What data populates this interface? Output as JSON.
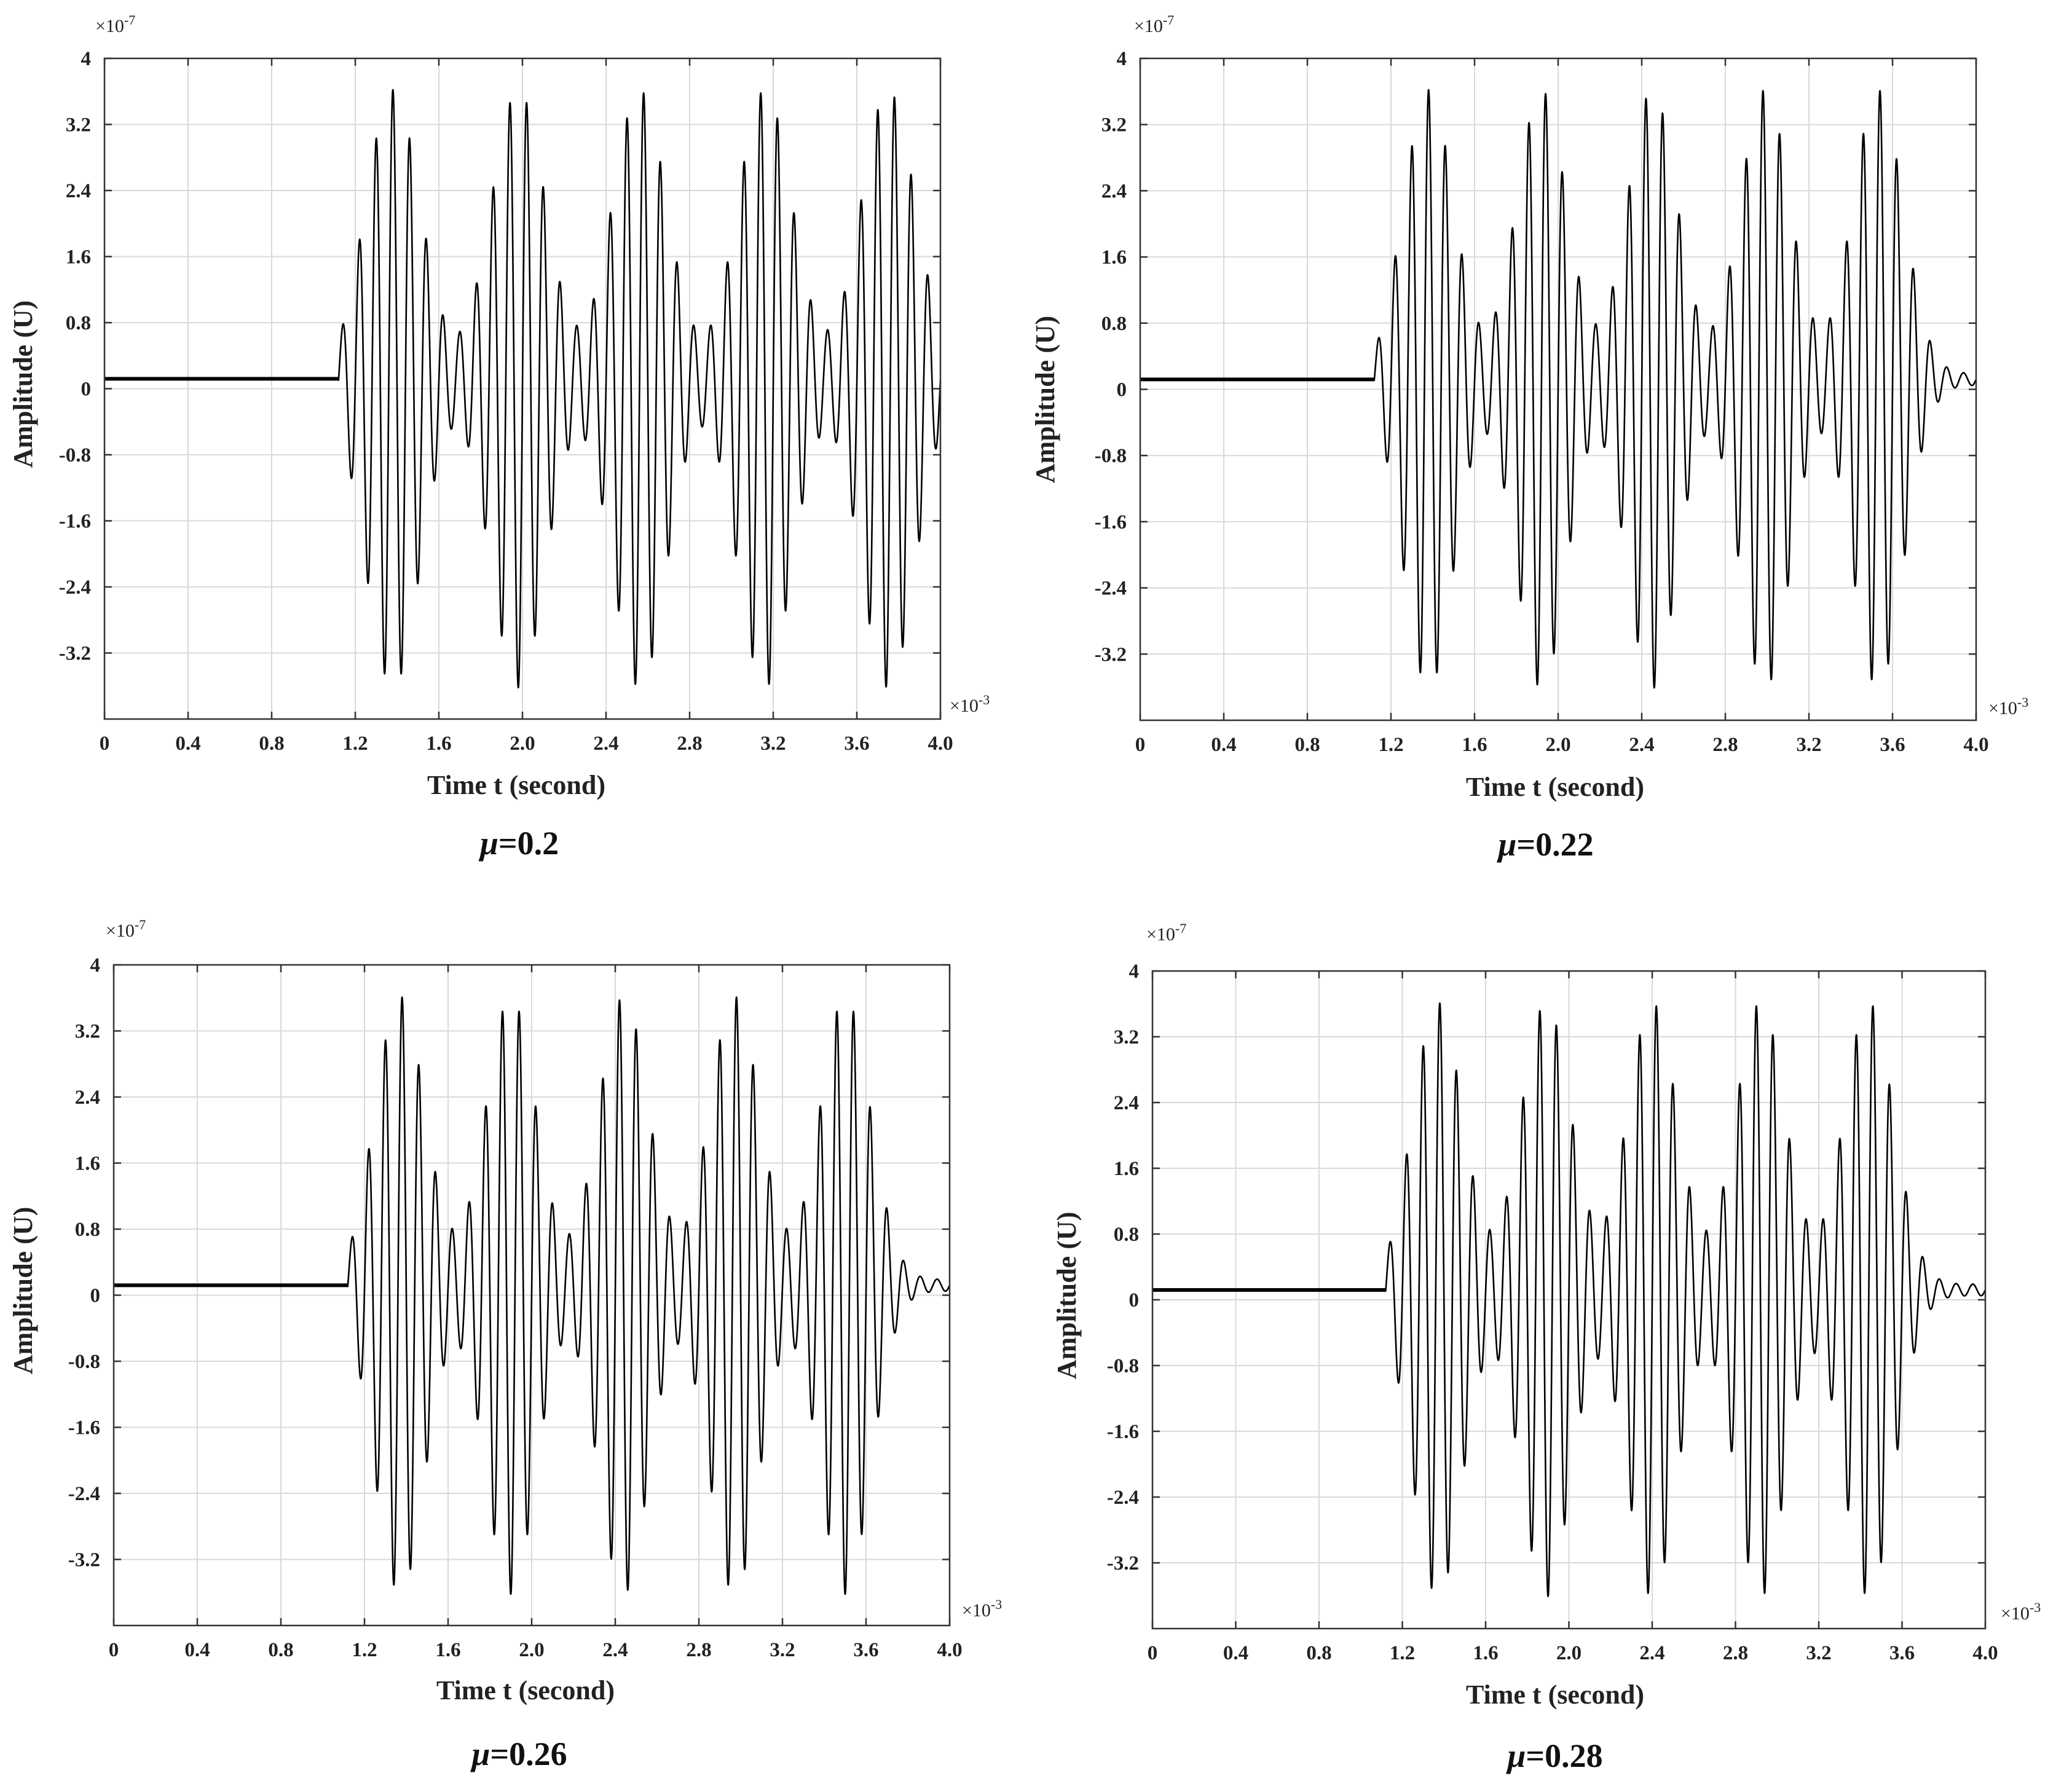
{
  "figure": {
    "xlabel": "Time t (second)",
    "ylabel": "Amplitude (U)",
    "x_exponent": {
      "base": "×10",
      "power": "-3"
    },
    "y_exponent": {
      "base": "×10",
      "power": "-7"
    },
    "x_ticks": [
      "0",
      "0.4",
      "0.8",
      "1.2",
      "1.6",
      "2.0",
      "2.4",
      "2.8",
      "3.2",
      "3.6",
      "4.0"
    ],
    "y_ticks": [
      "4",
      "3.2",
      "2.4",
      "1.6",
      "0.8",
      "0",
      "-0.8",
      "-1.6",
      "-2.4",
      "-3.2"
    ]
  },
  "chart_data": [
    {
      "type": "line",
      "title": "μ=0.2",
      "caption": {
        "symbol": "μ",
        "value": "=0.2"
      },
      "xlabel": "Time t (second)",
      "ylabel": "Amplitude (U)",
      "x_scale": "×10^-3",
      "y_scale": "×10^-7",
      "xlim": [
        0,
        4.0
      ],
      "ylim": [
        -4,
        4
      ],
      "grid": true,
      "series": [
        {
          "name": "Amplitude",
          "baseline": 0.12,
          "onset": 1.12,
          "carrier_frequency": 12.5,
          "peak_amplitude": 3.55,
          "packet_centers": [
            1.38,
            1.98,
            2.56,
            3.16,
            3.75
          ],
          "packet_width": 0.13
        }
      ]
    },
    {
      "type": "line",
      "title": "μ=0.22",
      "caption": {
        "symbol": "μ",
        "value": "=0.22"
      },
      "xlabel": "Time t (second)",
      "ylabel": "Amplitude (U)",
      "x_scale": "×10^-3",
      "y_scale": "×10^-7",
      "xlim": [
        0,
        4.0
      ],
      "ylim": [
        -4,
        4
      ],
      "grid": true,
      "series": [
        {
          "name": "Amplitude",
          "baseline": 0.12,
          "onset": 1.12,
          "carrier_frequency": 12.5,
          "peak_amplitude": 3.55,
          "packet_centers": [
            1.38,
            1.92,
            2.45,
            2.99,
            3.53
          ],
          "packet_width": 0.12
        }
      ]
    },
    {
      "type": "line",
      "title": "μ=0.26",
      "caption": {
        "symbol": "μ",
        "value": "=0.26"
      },
      "xlabel": "Time t (second)",
      "ylabel": "Amplitude (U)",
      "x_scale": "×10^-3",
      "y_scale": "×10^-7",
      "xlim": [
        0,
        4.0
      ],
      "ylim": [
        -4,
        4
      ],
      "grid": true,
      "series": [
        {
          "name": "Amplitude",
          "baseline": 0.12,
          "onset": 1.12,
          "carrier_frequency": 12.5,
          "peak_amplitude": 3.55,
          "packet_centers": [
            1.37,
            1.9,
            2.44,
            2.97,
            3.5
          ],
          "packet_width": 0.12
        }
      ]
    },
    {
      "type": "line",
      "title": "μ=0.28",
      "caption": {
        "symbol": "μ",
        "value": "=0.28"
      },
      "xlabel": "Time t (second)",
      "ylabel": "Amplitude (U)",
      "x_scale": "×10^-3",
      "y_scale": "×10^-7",
      "xlim": [
        0,
        4.0
      ],
      "ylim": [
        -4,
        4
      ],
      "grid": true,
      "series": [
        {
          "name": "Amplitude",
          "baseline": 0.12,
          "onset": 1.12,
          "carrier_frequency": 12.5,
          "peak_amplitude": 3.55,
          "packet_centers": [
            1.37,
            1.89,
            2.4,
            2.92,
            3.44
          ],
          "packet_width": 0.12
        }
      ]
    }
  ]
}
